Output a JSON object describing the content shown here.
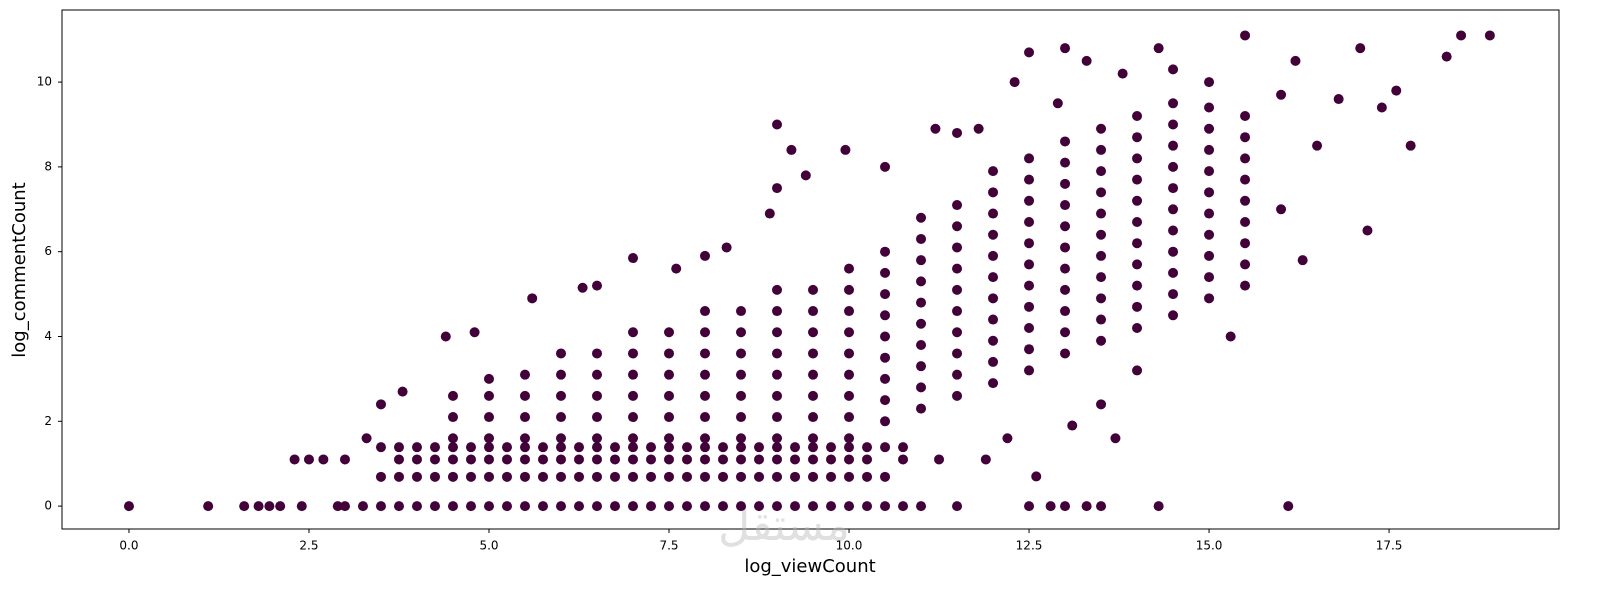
{
  "chart_data": {
    "type": "scatter",
    "x_label": "log_viewCount",
    "y_label": "log_commentCount",
    "watermark": "مستقل",
    "color": "#420239",
    "xlim": [
      -0.93,
      19.86
    ],
    "ylim": [
      -0.54,
      11.7
    ],
    "xticks": [
      {
        "value": 0,
        "label": "0.0"
      },
      2.5,
      {
        "value": 5,
        "label": "5.0"
      },
      7.5,
      {
        "value": 10,
        "label": "10.0"
      },
      12.5,
      {
        "value": 15,
        "label": "15.0"
      },
      17.5
    ],
    "yticks": [
      0,
      2,
      4,
      6,
      8,
      10
    ],
    "x": [
      4.5,
      4.5,
      4.5,
      5,
      5,
      5,
      5,
      5.5,
      5.5,
      5.5,
      5.5,
      6,
      6,
      6,
      6,
      6,
      6.5,
      6.5,
      6.5,
      6.5,
      6.5,
      7,
      7,
      7,
      7,
      7,
      7,
      7.5,
      7.5,
      7.5,
      7.5,
      7.5,
      7.5,
      8,
      8,
      8,
      8,
      8,
      8,
      8,
      8.5,
      8.5,
      8.5,
      8.5,
      8.5,
      8.5,
      8.5,
      9,
      9,
      9,
      9,
      9,
      9,
      9,
      9,
      9.5,
      9.5,
      9.5,
      9.5,
      9.5,
      9.5,
      9.5,
      9.5,
      10,
      10,
      10,
      10,
      10,
      10,
      10,
      10,
      10,
      10.5,
      10.5,
      10.5,
      10.5,
      10.5,
      10.5,
      10.5,
      10.5,
      10.5,
      11,
      11,
      11,
      11,
      11,
      11,
      11,
      11,
      11,
      11,
      11.5,
      11.5,
      11.5,
      11.5,
      11.5,
      11.5,
      11.5,
      11.5,
      11.5,
      11.5,
      12,
      12,
      12,
      12,
      12,
      12,
      12,
      12,
      12,
      12,
      12,
      12.5,
      12.5,
      12.5,
      12.5,
      12.5,
      12.5,
      12.5,
      12.5,
      12.5,
      12.5,
      12.5,
      13,
      13,
      13,
      13,
      13,
      13,
      13,
      13,
      13,
      13,
      13,
      13.5,
      13.5,
      13.5,
      13.5,
      13.5,
      13.5,
      13.5,
      13.5,
      13.5,
      13.5,
      13.5,
      14,
      14,
      14,
      14,
      14,
      14,
      14,
      14,
      14,
      14,
      14,
      14.5,
      14.5,
      14.5,
      14.5,
      14.5,
      14.5,
      14.5,
      14.5,
      14.5,
      14.5,
      14.5,
      15,
      15,
      15,
      15,
      15,
      15,
      15,
      15,
      15,
      15,
      15.5,
      15.5,
      15.5,
      15.5,
      15.5,
      15.5,
      15.5,
      15.5,
      15.5,
      0,
      1.1,
      1.6,
      1.8,
      1.95,
      2.1,
      2.4,
      2.9,
      3,
      3.25,
      3.5,
      3.75,
      4,
      4.25,
      4.5,
      4.75,
      5,
      5.25,
      5.5,
      5.75,
      6,
      6.25,
      6.5,
      6.75,
      7,
      7.25,
      7.5,
      7.75,
      8,
      8.25,
      8.5,
      8.75,
      9,
      9.25,
      9.5,
      9.75,
      10,
      10.25,
      10.5,
      10.75,
      11,
      11.5,
      12.5,
      12.8,
      13,
      13.3,
      13.5,
      14.3,
      16.1,
      3.5,
      3.75,
      4,
      4.25,
      4.5,
      4.75,
      5,
      5.25,
      5.5,
      5.75,
      6,
      6.25,
      6.5,
      6.75,
      7,
      7.25,
      7.5,
      7.75,
      8,
      8.25,
      8.5,
      8.75,
      9,
      9.25,
      9.5,
      9.75,
      10,
      10.25,
      10.5,
      2.3,
      2.5,
      2.7,
      3,
      3.75,
      4,
      4.25,
      4.5,
      4.75,
      5,
      5.25,
      5.5,
      5.75,
      6,
      6.25,
      6.5,
      6.75,
      7,
      7.25,
      7.5,
      7.75,
      8,
      8.25,
      8.5,
      8.75,
      9,
      9.25,
      9.5,
      9.75,
      10,
      10.25,
      10.75,
      11.25,
      3.5,
      3.75,
      4,
      4.25,
      4.5,
      4.75,
      5,
      5.25,
      5.5,
      5.75,
      6,
      6.25,
      6.5,
      6.75,
      7,
      7.25,
      7.5,
      7.75,
      8,
      8.25,
      8.5,
      8.75,
      9,
      9.25,
      9.5,
      9.75,
      10,
      10.25,
      10.5,
      10.75,
      6.5,
      7,
      7.6,
      8,
      8.3,
      8.9,
      9,
      9.4,
      9.2,
      9,
      9.95,
      10.5,
      11.2,
      11.5,
      12.3,
      12.5,
      13,
      13.3,
      14.3,
      15.5,
      16.2,
      17.1,
      17.6,
      18.3,
      18.5,
      18.9,
      17.8,
      17.2,
      16.3,
      16,
      16.5,
      15.3,
      13.7,
      13.1,
      13.5,
      12.6,
      11.9,
      4.4,
      4.8,
      5.6,
      6.3,
      3.8,
      3.5,
      3.3,
      14,
      12.2,
      16.8,
      17.4,
      16,
      15,
      14.5,
      13.8,
      12.9,
      11.8
    ],
    "values": [
      1.6,
      2.1,
      2.6,
      1.6,
      2.1,
      2.6,
      3.0,
      1.6,
      2.1,
      2.6,
      3.1,
      1.6,
      2.1,
      2.6,
      3.1,
      3.6,
      1.6,
      2.1,
      2.6,
      3.1,
      3.6,
      1.6,
      2.1,
      2.6,
      3.1,
      3.6,
      4.1,
      1.6,
      2.1,
      2.6,
      3.1,
      3.6,
      4.1,
      1.6,
      2.1,
      2.6,
      3.1,
      3.6,
      4.1,
      4.6,
      1.6,
      2.1,
      2.6,
      3.1,
      3.6,
      4.1,
      4.6,
      1.6,
      2.1,
      2.6,
      3.1,
      3.6,
      4.1,
      4.6,
      5.1,
      1.6,
      2.1,
      2.6,
      3.1,
      3.6,
      4.1,
      4.6,
      5.1,
      1.6,
      2.1,
      2.6,
      3.1,
      3.6,
      4.1,
      4.6,
      5.1,
      5.6,
      2.0,
      2.5,
      3.0,
      3.5,
      4.0,
      4.5,
      5.0,
      5.5,
      6.0,
      2.3,
      2.8,
      3.3,
      3.8,
      4.3,
      4.8,
      5.3,
      5.8,
      6.3,
      6.8,
      2.6,
      3.1,
      3.6,
      4.1,
      4.6,
      5.1,
      5.6,
      6.1,
      6.6,
      7.1,
      2.9,
      3.4,
      3.9,
      4.4,
      4.9,
      5.4,
      5.9,
      6.4,
      6.9,
      7.4,
      7.9,
      3.2,
      3.7,
      4.2,
      4.7,
      5.2,
      5.7,
      6.2,
      6.7,
      7.2,
      7.7,
      8.2,
      3.6,
      4.1,
      4.6,
      5.1,
      5.6,
      6.1,
      6.6,
      7.1,
      7.6,
      8.1,
      8.6,
      3.9,
      4.4,
      4.9,
      5.4,
      5.9,
      6.4,
      6.9,
      7.4,
      7.9,
      8.4,
      8.9,
      4.2,
      4.7,
      5.2,
      5.7,
      6.2,
      6.7,
      7.2,
      7.7,
      8.2,
      8.7,
      9.2,
      4.5,
      5.0,
      5.5,
      6.0,
      6.5,
      7.0,
      7.5,
      8.0,
      8.5,
      9.0,
      9.5,
      4.9,
      5.4,
      5.9,
      6.4,
      6.9,
      7.4,
      7.9,
      8.4,
      8.9,
      9.4,
      5.2,
      5.7,
      6.2,
      6.7,
      7.2,
      7.7,
      8.2,
      8.7,
      9.2,
      0,
      0,
      0,
      0,
      0,
      0,
      0,
      0,
      0,
      0,
      0,
      0,
      0,
      0,
      0,
      0,
      0,
      0,
      0,
      0,
      0,
      0,
      0,
      0,
      0,
      0,
      0,
      0,
      0,
      0,
      0,
      0,
      0,
      0,
      0,
      0,
      0,
      0,
      0,
      0,
      0,
      0,
      0,
      0,
      0,
      0,
      0,
      0,
      0,
      0.69,
      0.69,
      0.69,
      0.69,
      0.69,
      0.69,
      0.69,
      0.69,
      0.69,
      0.69,
      0.69,
      0.69,
      0.69,
      0.69,
      0.69,
      0.69,
      0.69,
      0.69,
      0.69,
      0.69,
      0.69,
      0.69,
      0.69,
      0.69,
      0.69,
      0.69,
      0.69,
      0.69,
      0.69,
      1.1,
      1.1,
      1.1,
      1.1,
      1.1,
      1.1,
      1.1,
      1.1,
      1.1,
      1.1,
      1.1,
      1.1,
      1.1,
      1.1,
      1.1,
      1.1,
      1.1,
      1.1,
      1.1,
      1.1,
      1.1,
      1.1,
      1.1,
      1.1,
      1.1,
      1.1,
      1.1,
      1.1,
      1.1,
      1.1,
      1.1,
      1.1,
      1.1,
      1.39,
      1.39,
      1.39,
      1.39,
      1.39,
      1.39,
      1.39,
      1.39,
      1.39,
      1.39,
      1.39,
      1.39,
      1.39,
      1.39,
      1.39,
      1.39,
      1.39,
      1.39,
      1.39,
      1.39,
      1.39,
      1.39,
      1.39,
      1.39,
      1.39,
      1.39,
      1.39,
      1.39,
      1.39,
      1.39,
      5.2,
      5.85,
      5.6,
      5.9,
      6.1,
      6.9,
      7.5,
      7.8,
      8.4,
      9.0,
      8.4,
      8.0,
      8.9,
      8.8,
      10.0,
      10.7,
      10.8,
      10.5,
      10.8,
      11.1,
      10.5,
      10.8,
      9.8,
      10.6,
      11.1,
      11.1,
      8.5,
      6.5,
      5.8,
      7.0,
      8.5,
      4.0,
      1.6,
      1.9,
      2.4,
      0.7,
      1.1,
      4.0,
      4.1,
      4.9,
      5.15,
      2.7,
      2.4,
      1.6,
      3.2,
      1.6,
      9.6,
      9.4,
      9.7,
      10.0,
      10.3,
      10.2,
      9.5,
      8.9
    ]
  }
}
